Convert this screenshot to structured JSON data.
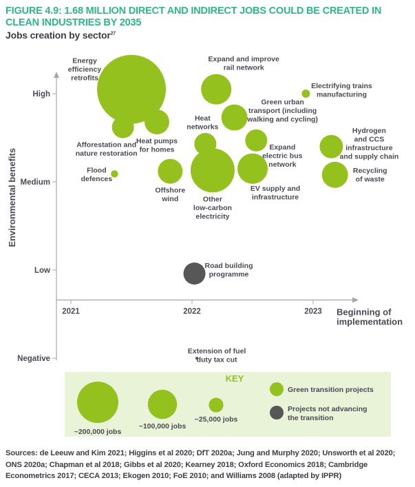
{
  "figure": {
    "title": "FIGURE 4.9: 1.68 MILLION DIRECT AND INDIRECT JOBS COULD BE CREATED IN CLEAN INDUSTRIES BY 2035",
    "subtitle": "Jobs creation by sector",
    "subtitle_footnote": "27",
    "sources": "Sources: de Leeuw and Kim 2021; Higgins et al 2020; DfT 2020a; Jung and Murphy 2020; Unsworth et al 2020; ONS 2020a; Chapman et al 2018; Gibbs et al 2020; Kearney 2018; Oxford Economics 2018; Cambridge Econometrics 2017; CECA 2013; Ekogen 2010; FoE 2010; and Williams 2008 (adapted by IPPR)"
  },
  "colors": {
    "green": "#95c11f",
    "dark": "#575757",
    "title": "#2fb58a",
    "key_bg": "#e9f3d8",
    "axis": "#a6a6a6",
    "text": "#4a4a55"
  },
  "chart_data": {
    "type": "scatter",
    "subtype": "bubble",
    "title": "Jobs creation by sector",
    "xlabel": "Beginning of implementation",
    "ylabel": "Environmental benefits",
    "x_ticks": [
      {
        "label": "2021",
        "value": 2021
      },
      {
        "label": "2022",
        "value": 2022
      },
      {
        "label": "2023",
        "value": 2023
      }
    ],
    "y_ticks": [
      {
        "label": "High",
        "value": 3
      },
      {
        "label": "Medium",
        "value": 2
      },
      {
        "label": "Low",
        "value": 1
      },
      {
        "label": "Negative",
        "value": 0
      }
    ],
    "xlim": [
      2020.87,
      2023.4
    ],
    "ylim": [
      -0.05,
      3.1
    ],
    "x_axis_at_y": 0.66,
    "size_unit": "jobs",
    "points": [
      {
        "name": "Energy efficiency retrofits",
        "label_lines": [
          "Energy",
          "efficiency",
          "retrofits"
        ],
        "x": 2021.5,
        "y": 3.05,
        "jobs": 555000,
        "group": "green",
        "label_pos": "left"
      },
      {
        "name": "Expand and improve rail network",
        "label_lines": [
          "Expand and improve",
          "rail network"
        ],
        "x": 2022.2,
        "y": 3.05,
        "jobs": 108000,
        "group": "green",
        "label_pos": "top"
      },
      {
        "name": "Electrifying trains manufacturing",
        "label_lines": [
          "Electrifying trains",
          "manufacturing"
        ],
        "x": 2022.94,
        "y": 3.0,
        "jobs": 8000,
        "group": "green",
        "label_pos": "right"
      },
      {
        "name": "Green urban transport (including walking and cycling)",
        "label_lines": [
          "Green urban",
          "transport (including",
          "walking and cycling)"
        ],
        "x": 2022.35,
        "y": 2.73,
        "jobs": 80000,
        "group": "green",
        "label_pos": "right"
      },
      {
        "name": "Heat pumps for homes",
        "label_lines": [
          "Heat pumps",
          "for homes"
        ],
        "x": 2021.71,
        "y": 2.68,
        "jobs": 72000,
        "group": "green",
        "label_pos": "bottom"
      },
      {
        "name": "Afforestation and nature restoration",
        "label_lines": [
          "Afforestation and",
          "nature restoration"
        ],
        "x": 2021.43,
        "y": 2.62,
        "jobs": 57000,
        "group": "green",
        "label_pos": "bottom"
      },
      {
        "name": "Heat networks",
        "label_lines": [
          "Heat",
          "networks"
        ],
        "x": 2022.11,
        "y": 2.43,
        "jobs": 57000,
        "group": "green",
        "label_pos": "top"
      },
      {
        "name": "Expand electric bus network",
        "label_lines": [
          "Expand",
          "electric bus",
          "network"
        ],
        "x": 2022.53,
        "y": 2.47,
        "jobs": 57000,
        "group": "green",
        "label_pos": "bottom-right"
      },
      {
        "name": "Hydrogen and CCS infrastructure and supply chain",
        "label_lines": [
          "Hydrogen",
          "and CCS",
          "infrastructure",
          "and supply chain"
        ],
        "x": 2023.15,
        "y": 2.4,
        "jobs": 64000,
        "group": "green",
        "label_pos": "right"
      },
      {
        "name": "Flood defences",
        "label_lines": [
          "Flood",
          "defences"
        ],
        "x": 2021.36,
        "y": 2.09,
        "jobs": 6000,
        "group": "green",
        "label_pos": "left"
      },
      {
        "name": "Offshore wind",
        "label_lines": [
          "Offshore",
          "wind"
        ],
        "x": 2021.82,
        "y": 2.12,
        "jobs": 72000,
        "group": "green",
        "label_pos": "bottom"
      },
      {
        "name": "Other low-carbon electricity",
        "label_lines": [
          "Other",
          "low-carbon",
          "electricity"
        ],
        "x": 2022.17,
        "y": 2.13,
        "jobs": 228000,
        "group": "green",
        "label_pos": "bottom"
      },
      {
        "name": "EV supply and infrastructure",
        "label_lines": [
          "EV supply and",
          "infrastructure"
        ],
        "x": 2022.5,
        "y": 2.15,
        "jobs": 108000,
        "group": "green",
        "label_pos": "bottom"
      },
      {
        "name": "Recycling of waste",
        "label_lines": [
          "Recycling",
          "of waste"
        ],
        "x": 2023.18,
        "y": 2.08,
        "jobs": 80000,
        "group": "green",
        "label_pos": "right"
      },
      {
        "name": "Road building programme",
        "label_lines": [
          "Road building",
          "programme"
        ],
        "x": 2022.02,
        "y": 0.96,
        "jobs": 57000,
        "group": "dark",
        "label_pos": "right"
      },
      {
        "name": "Extension of fuel duty tax cut",
        "label_lines": [
          "Extension of fuel",
          "duty tax cut"
        ],
        "x": 2022.04,
        "y": 0.0,
        "jobs": 1000,
        "group": "dark",
        "label_pos": "top-right"
      }
    ],
    "key": {
      "title": "KEY",
      "sizes": [
        {
          "label": "~200,000 jobs",
          "jobs": 200000
        },
        {
          "label": "~100,000 jobs",
          "jobs": 100000
        },
        {
          "label": "~25,000 jobs",
          "jobs": 25000
        }
      ],
      "groups": [
        {
          "label": "Green transition projects",
          "group": "green"
        },
        {
          "label": "Projects not advancing",
          "label2": "the transition",
          "group": "dark"
        }
      ]
    }
  }
}
